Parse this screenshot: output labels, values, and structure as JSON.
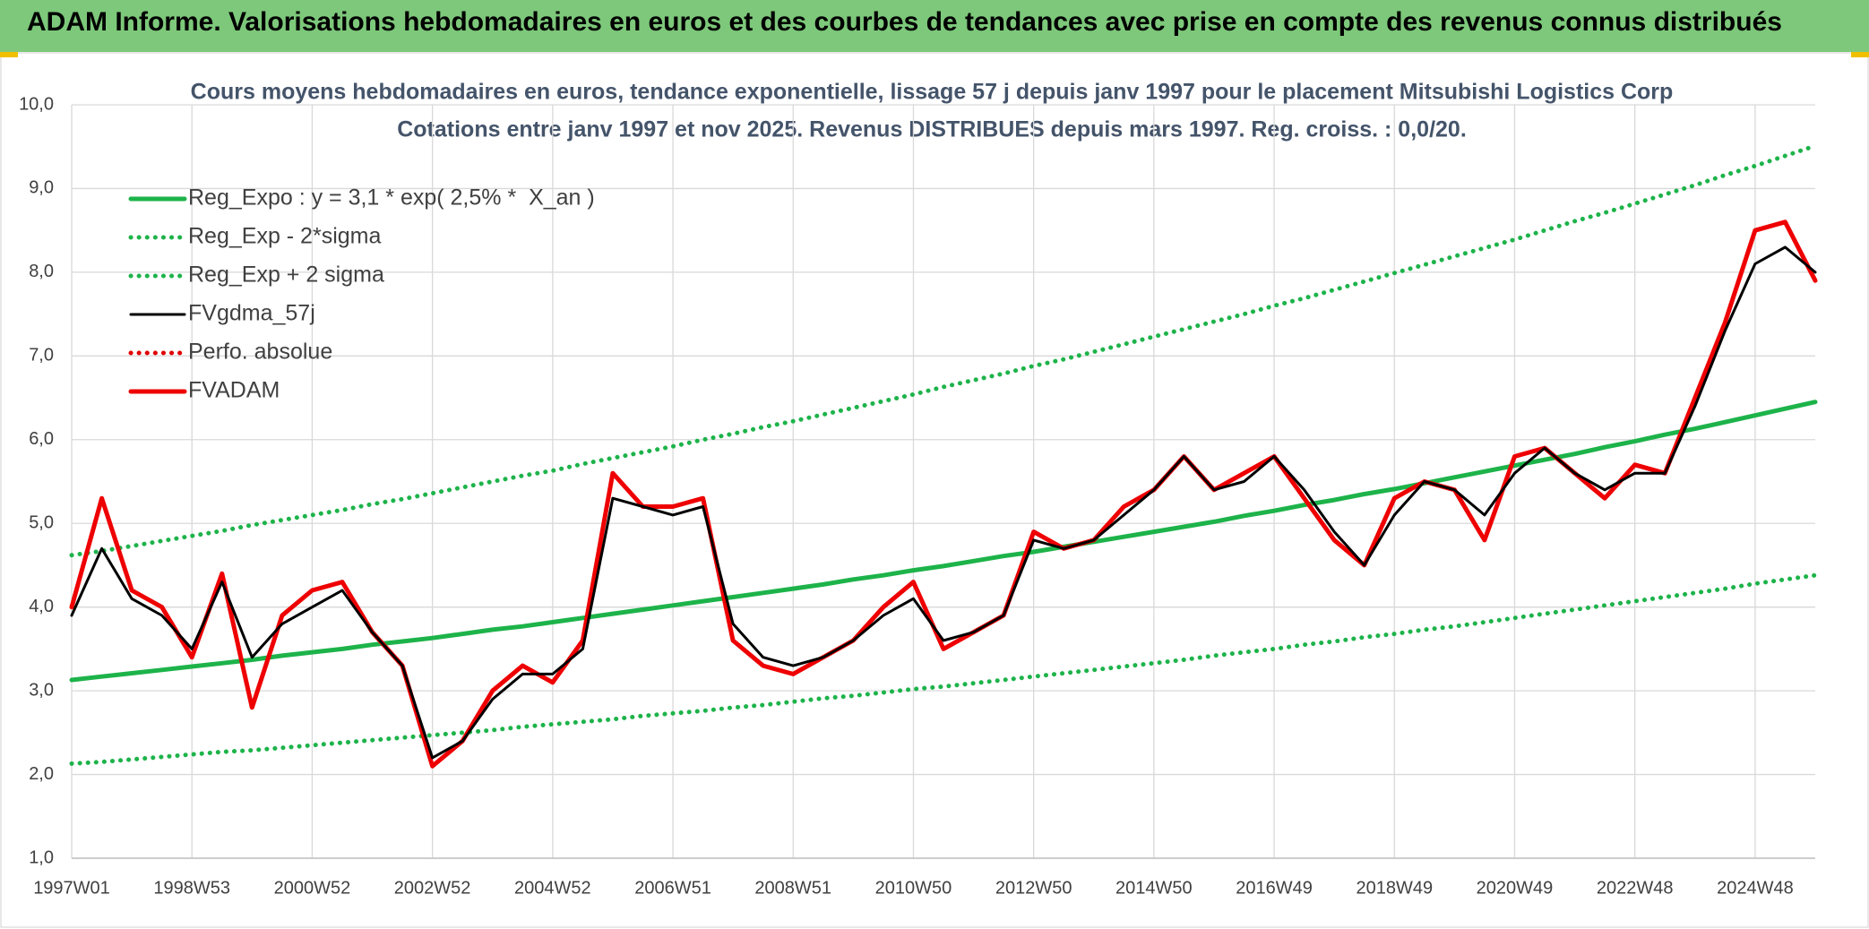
{
  "header": {
    "title": "ADAM Informe. Valorisations hebdomadaires en euros et des courbes de tendances avec prise en compte des revenus connus distribués"
  },
  "chart_data": {
    "type": "line",
    "title": "Cours moyens hebdomadaires en euros, tendance exponentielle, lissage 57 j depuis janv 1997 pour le placement Mitsubishi Logistics Corp",
    "subtitle": "Cotations entre janv 1997 et nov 2025. Revenus DISTRIBUES depuis mars 1997. Reg. croiss. : 0,0/20.",
    "categories": [
      "1997W01",
      null,
      null,
      null,
      "1998W53",
      null,
      null,
      null,
      "2000W52",
      null,
      null,
      null,
      "2002W52",
      null,
      null,
      null,
      "2004W52",
      null,
      null,
      null,
      "2006W51",
      null,
      null,
      null,
      "2008W51",
      null,
      null,
      null,
      "2010W50",
      null,
      null,
      null,
      "2012W50",
      null,
      null,
      null,
      "2014W50",
      null,
      null,
      null,
      "2016W49",
      null,
      null,
      null,
      "2018W49",
      null,
      null,
      null,
      "2020W49",
      null,
      null,
      null,
      "2022W48",
      null,
      null,
      null,
      "2024W48",
      null,
      null
    ],
    "ylim": [
      1,
      10
    ],
    "yticks": [
      {
        "value": 1,
        "label": "1,0"
      },
      {
        "value": 2,
        "label": "2,0"
      },
      {
        "value": 3,
        "label": "3,0"
      },
      {
        "value": 4,
        "label": "4,0"
      },
      {
        "value": 5,
        "label": "5,0"
      },
      {
        "value": 6,
        "label": "6,0"
      },
      {
        "value": 7,
        "label": "7,0"
      },
      {
        "value": 8,
        "label": "8,0"
      },
      {
        "value": 9,
        "label": "9,0"
      },
      {
        "value": 10,
        "label": "10,0"
      }
    ],
    "grid": true,
    "legend": "top-left",
    "series": [
      {
        "name": "Reg_Expo : y = 3,1 * exp( 2,5% *  X_an )",
        "color": "#1db34a",
        "style": "solid",
        "values": [
          3.13,
          3.17,
          3.21,
          3.25,
          3.29,
          3.33,
          3.37,
          3.42,
          3.46,
          3.5,
          3.55,
          3.59,
          3.63,
          3.68,
          3.73,
          3.77,
          3.82,
          3.87,
          3.92,
          3.97,
          4.02,
          4.07,
          4.12,
          4.17,
          4.22,
          4.27,
          4.33,
          4.38,
          4.44,
          4.49,
          4.55,
          4.61,
          4.66,
          4.72,
          4.78,
          4.84,
          4.9,
          4.96,
          5.02,
          5.09,
          5.15,
          5.22,
          5.28,
          5.35,
          5.41,
          5.48,
          5.55,
          5.62,
          5.69,
          5.76,
          5.83,
          5.91,
          5.98,
          6.06,
          6.13,
          6.21,
          6.29,
          6.37,
          6.45
        ]
      },
      {
        "name": "Reg_Exp - 2*sigma",
        "color": "#1db34a",
        "style": "dotted",
        "values": [
          2.13,
          2.15,
          2.18,
          2.21,
          2.24,
          2.27,
          2.29,
          2.32,
          2.35,
          2.38,
          2.41,
          2.44,
          2.47,
          2.5,
          2.53,
          2.57,
          2.6,
          2.63,
          2.66,
          2.7,
          2.73,
          2.76,
          2.8,
          2.83,
          2.87,
          2.91,
          2.94,
          2.98,
          3.02,
          3.05,
          3.09,
          3.13,
          3.17,
          3.21,
          3.25,
          3.29,
          3.33,
          3.37,
          3.42,
          3.46,
          3.5,
          3.55,
          3.59,
          3.64,
          3.68,
          3.73,
          3.77,
          3.82,
          3.87,
          3.92,
          3.97,
          4.02,
          4.07,
          4.12,
          4.17,
          4.22,
          4.28,
          4.33,
          4.38
        ]
      },
      {
        "name": "Reg_Exp + 2 sigma",
        "color": "#1db34a",
        "style": "dotted",
        "values": [
          4.62,
          4.67,
          4.73,
          4.79,
          4.85,
          4.91,
          4.98,
          5.04,
          5.1,
          5.16,
          5.23,
          5.29,
          5.36,
          5.43,
          5.5,
          5.57,
          5.63,
          5.71,
          5.78,
          5.85,
          5.92,
          6.0,
          6.07,
          6.15,
          6.22,
          6.3,
          6.38,
          6.46,
          6.54,
          6.63,
          6.71,
          6.79,
          6.88,
          6.96,
          7.05,
          7.14,
          7.23,
          7.32,
          7.41,
          7.5,
          7.6,
          7.69,
          7.79,
          7.89,
          7.99,
          8.09,
          8.19,
          8.29,
          8.39,
          8.5,
          8.61,
          8.71,
          8.82,
          8.93,
          9.04,
          9.16,
          9.27,
          9.39,
          9.51
        ]
      },
      {
        "name": "FVgdma_57j",
        "color": "#000000",
        "style": "solid",
        "values": [
          3.9,
          4.7,
          4.1,
          3.9,
          3.5,
          4.3,
          3.4,
          3.8,
          4.0,
          4.2,
          3.7,
          3.3,
          2.2,
          2.4,
          2.9,
          3.2,
          3.2,
          3.5,
          5.3,
          5.2,
          5.1,
          5.2,
          3.8,
          3.4,
          3.3,
          3.4,
          3.6,
          3.9,
          4.1,
          3.6,
          3.7,
          3.9,
          4.8,
          4.7,
          4.8,
          5.1,
          5.4,
          5.8,
          5.4,
          5.5,
          5.8,
          5.4,
          4.9,
          4.5,
          5.1,
          5.5,
          5.4,
          5.1,
          5.6,
          5.9,
          5.6,
          5.4,
          5.6,
          5.6,
          6.4,
          7.3,
          8.1,
          8.3,
          8.0
        ]
      },
      {
        "name": "Perfo. absolue",
        "color": "#e00000",
        "style": "dotted",
        "values": [
          null,
          null,
          null,
          null,
          null,
          null,
          null,
          null,
          null,
          null,
          null,
          null,
          null,
          null,
          null,
          null,
          null,
          null,
          null,
          null,
          null,
          null,
          null,
          null,
          null,
          null,
          null,
          null,
          null,
          null,
          null,
          null,
          null,
          null,
          null,
          null,
          null,
          null,
          null,
          null,
          null,
          null,
          null,
          null,
          null,
          null,
          null,
          null,
          null,
          null,
          null,
          null,
          null,
          null,
          null,
          null,
          null,
          null,
          null
        ]
      },
      {
        "name": "FVADAM",
        "color": "#ee0000",
        "style": "solid",
        "values": [
          4.0,
          5.3,
          4.2,
          4.0,
          3.4,
          4.4,
          2.8,
          3.9,
          4.2,
          4.3,
          3.7,
          3.3,
          2.1,
          2.4,
          3.0,
          3.3,
          3.1,
          3.6,
          5.6,
          5.2,
          5.2,
          5.3,
          3.6,
          3.3,
          3.2,
          3.4,
          3.6,
          4.0,
          4.3,
          3.5,
          3.7,
          3.9,
          4.9,
          4.7,
          4.8,
          5.2,
          5.4,
          5.8,
          5.4,
          5.6,
          5.8,
          5.3,
          4.8,
          4.5,
          5.3,
          5.5,
          5.4,
          4.8,
          5.8,
          5.9,
          5.6,
          5.3,
          5.7,
          5.6,
          6.5,
          7.4,
          8.5,
          8.6,
          7.9
        ]
      }
    ]
  }
}
